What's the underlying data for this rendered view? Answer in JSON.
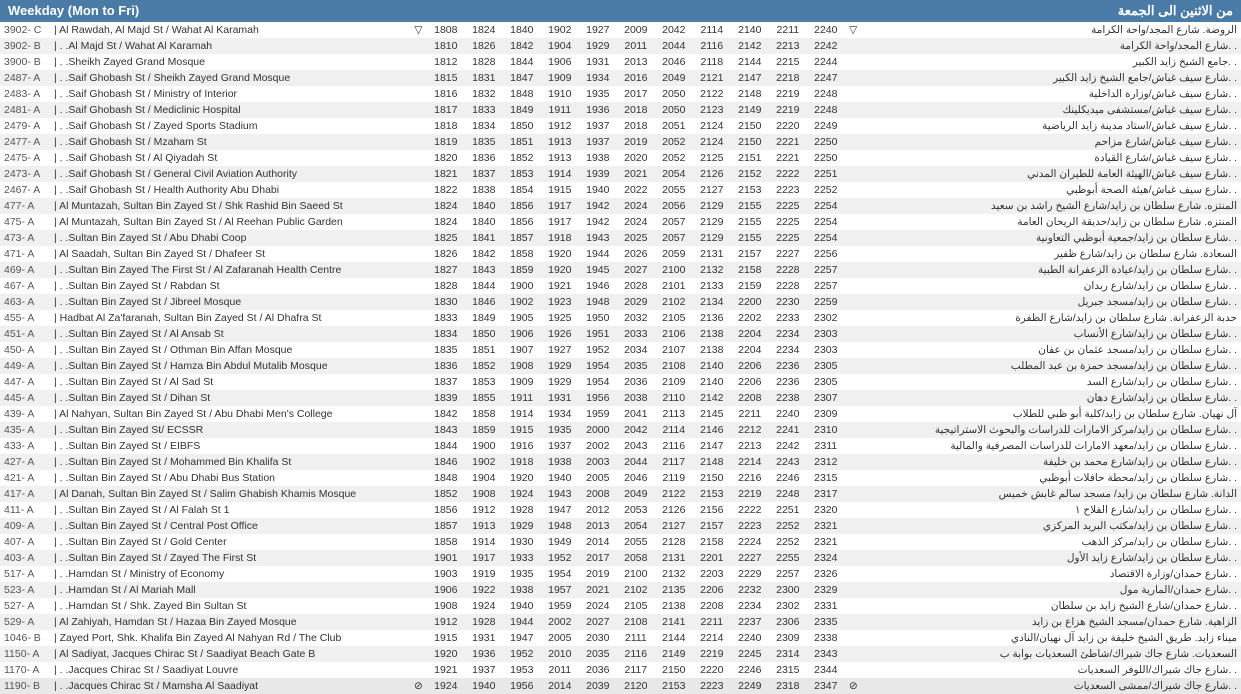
{
  "header_left": "Weekday (Mon to Fri)",
  "header_right": "من الاثنين الى الجمعة",
  "colors": {
    "header_bg": "#4a7ba6",
    "header_text": "#ffffff",
    "row_even": "#f0f0f0",
    "row_odd": "#ffffff",
    "text": "#333333"
  },
  "rows": [
    {
      "code": "3902- C",
      "stop": "| Al Rawdah, Al Majd St / Wahat Al Karamah",
      "m1": "▽",
      "times": [
        "1808",
        "1824",
        "1840",
        "1902",
        "1927",
        "2009",
        "2042",
        "2114",
        "2140",
        "2211",
        "2240"
      ],
      "m2": "▽",
      "ar": "الروضة. شارع المجد/واحة الكرامة"
    },
    {
      "code": "3902- B",
      "stop": "| . .Al Majd St / Wahat Al Karamah",
      "m1": "",
      "times": [
        "1810",
        "1826",
        "1842",
        "1904",
        "1929",
        "2011",
        "2044",
        "2116",
        "2142",
        "2213",
        "2242"
      ],
      "m2": "",
      "ar": ". .شارع المجد/واحة الكرامة"
    },
    {
      "code": "3900- B",
      "stop": "| . .Sheikh Zayed Grand Mosque",
      "m1": "",
      "times": [
        "1812",
        "1828",
        "1844",
        "1906",
        "1931",
        "2013",
        "2046",
        "2118",
        "2144",
        "2215",
        "2244"
      ],
      "m2": "",
      "ar": ". .جامع الشيخ زايد الكبير"
    },
    {
      "code": "2487- A",
      "stop": "| . .Saif Ghobash St / Sheikh Zayed Grand Mosque",
      "m1": "",
      "times": [
        "1815",
        "1831",
        "1847",
        "1909",
        "1934",
        "2016",
        "2049",
        "2121",
        "2147",
        "2218",
        "2247"
      ],
      "m2": "",
      "ar": ". .شارع سيف غباش/جامع الشيخ زايد الكبير"
    },
    {
      "code": "2483- A",
      "stop": "| . .Saif Ghobash St / Ministry of Interior",
      "m1": "",
      "times": [
        "1816",
        "1832",
        "1848",
        "1910",
        "1935",
        "2017",
        "2050",
        "2122",
        "2148",
        "2219",
        "2248"
      ],
      "m2": "",
      "ar": ". .شارع سيف غباش/وزارة الداخلية"
    },
    {
      "code": "2481- A",
      "stop": "| . .Saif Ghobash St / Mediclinic Hospital",
      "m1": "",
      "times": [
        "1817",
        "1833",
        "1849",
        "1911",
        "1936",
        "2018",
        "2050",
        "2123",
        "2149",
        "2219",
        "2248"
      ],
      "m2": "",
      "ar": ". .شارع سيف غباش/مستشفى ميديكلينك"
    },
    {
      "code": "2479- A",
      "stop": "| . .Saif Ghobash St / Zayed Sports Stadium",
      "m1": "",
      "times": [
        "1818",
        "1834",
        "1850",
        "1912",
        "1937",
        "2018",
        "2051",
        "2124",
        "2150",
        "2220",
        "2249"
      ],
      "m2": "",
      "ar": ". .شارع سيف غباش/استاد مدينة زايد الرياضية"
    },
    {
      "code": "2477- A",
      "stop": "| . .Saif Ghobash St / Mzaham St",
      "m1": "",
      "times": [
        "1819",
        "1835",
        "1851",
        "1913",
        "1937",
        "2019",
        "2052",
        "2124",
        "2150",
        "2221",
        "2250"
      ],
      "m2": "",
      "ar": ". .شارع سيف غباش/شارع مزاحم"
    },
    {
      "code": "2475- A",
      "stop": "| . .Saif Ghobash St / Al Qiyadah St",
      "m1": "",
      "times": [
        "1820",
        "1836",
        "1852",
        "1913",
        "1938",
        "2020",
        "2052",
        "2125",
        "2151",
        "2221",
        "2250"
      ],
      "m2": "",
      "ar": ". .شارع سيف غباش/شارع القيادة"
    },
    {
      "code": "2473- A",
      "stop": "| . .Saif Ghobash St / General Civil Aviation Authority",
      "m1": "",
      "times": [
        "1821",
        "1837",
        "1853",
        "1914",
        "1939",
        "2021",
        "2054",
        "2126",
        "2152",
        "2222",
        "2251"
      ],
      "m2": "",
      "ar": ". .شارع سيف غباش/الهيئة العامة للطيران المدني"
    },
    {
      "code": "2467- A",
      "stop": "| . .Saif Ghobash St / Health Authority Abu Dhabi",
      "m1": "",
      "times": [
        "1822",
        "1838",
        "1854",
        "1915",
        "1940",
        "2022",
        "2055",
        "2127",
        "2153",
        "2223",
        "2252"
      ],
      "m2": "",
      "ar": ". .شارع سيف غباش/هيئة الصحة أبوظبي"
    },
    {
      "code": "477- A",
      "stop": "| Al Muntazah, Sultan Bin Zayed St / Shk Rashid Bin Saeed St",
      "m1": "",
      "times": [
        "1824",
        "1840",
        "1856",
        "1917",
        "1942",
        "2024",
        "2056",
        "2129",
        "2155",
        "2225",
        "2254"
      ],
      "m2": "",
      "ar": "المنتزه. شارع سلطان بن زايد/شارع الشيخ راشد بن سعيد"
    },
    {
      "code": "475- A",
      "stop": "| Al Muntazah, Sultan Bin Zayed St / Al Reehan Public Garden",
      "m1": "",
      "times": [
        "1824",
        "1840",
        "1856",
        "1917",
        "1942",
        "2024",
        "2057",
        "2129",
        "2155",
        "2225",
        "2254"
      ],
      "m2": "",
      "ar": "المنتزه. شارع سلطان بن زايد/حديقة الريحان العامة"
    },
    {
      "code": "473- A",
      "stop": "| . .Sultan Bin Zayed St / Abu Dhabi Coop",
      "m1": "",
      "times": [
        "1825",
        "1841",
        "1857",
        "1918",
        "1943",
        "2025",
        "2057",
        "2129",
        "2155",
        "2225",
        "2254"
      ],
      "m2": "",
      "ar": ". .شارع سلطان بن زايد/جمعية أبوظبي التعاونية"
    },
    {
      "code": "471- A",
      "stop": "| Al Saadah, Sultan Bin Zayed St / Dhafeer St",
      "m1": "",
      "times": [
        "1826",
        "1842",
        "1858",
        "1920",
        "1944",
        "2026",
        "2059",
        "2131",
        "2157",
        "2227",
        "2256"
      ],
      "m2": "",
      "ar": "السعادة. شارع سلطان بن زايد/شارع ظفير"
    },
    {
      "code": "469- A",
      "stop": "| . .Sultan Bin Zayed The First St / Al Zafaranah Health Centre",
      "m1": "",
      "times": [
        "1827",
        "1843",
        "1859",
        "1920",
        "1945",
        "2027",
        "2100",
        "2132",
        "2158",
        "2228",
        "2257"
      ],
      "m2": "",
      "ar": ". .شارع سلطان بن زايد/عيادة الزعفرانة الطبية"
    },
    {
      "code": "467- A",
      "stop": "| . .Sultan Bin Zayed St / Rabdan St",
      "m1": "",
      "times": [
        "1828",
        "1844",
        "1900",
        "1921",
        "1946",
        "2028",
        "2101",
        "2133",
        "2159",
        "2228",
        "2257"
      ],
      "m2": "",
      "ar": ". .شارع سلطان بن زايد/شارع ربدان"
    },
    {
      "code": "463- A",
      "stop": "| . .Sultan Bin Zayed St / Jibreel Mosque",
      "m1": "",
      "times": [
        "1830",
        "1846",
        "1902",
        "1923",
        "1948",
        "2029",
        "2102",
        "2134",
        "2200",
        "2230",
        "2259"
      ],
      "m2": "",
      "ar": ". .شارع سلطان بن زايد/مسجد جبريل"
    },
    {
      "code": "455- A",
      "stop": "| Hadbat Al Za'faranah, Sultan Bin Zayed St / Al Dhafra St",
      "m1": "",
      "times": [
        "1833",
        "1849",
        "1905",
        "1925",
        "1950",
        "2032",
        "2105",
        "2136",
        "2202",
        "2233",
        "2302"
      ],
      "m2": "",
      "ar": "حدبة الزعفرانة. شارع سلطان بن زايد/شارع الظفرة"
    },
    {
      "code": "451- A",
      "stop": "| . .Sultan Bin Zayed St / Al Ansab St",
      "m1": "",
      "times": [
        "1834",
        "1850",
        "1906",
        "1926",
        "1951",
        "2033",
        "2106",
        "2138",
        "2204",
        "2234",
        "2303"
      ],
      "m2": "",
      "ar": ". .شارع سلطان بن زايد/شارع الأنساب"
    },
    {
      "code": "450- A",
      "stop": "| . .Sultan Bin Zayed St / Othman Bin Affan Mosque",
      "m1": "",
      "times": [
        "1835",
        "1851",
        "1907",
        "1927",
        "1952",
        "2034",
        "2107",
        "2138",
        "2204",
        "2234",
        "2303"
      ],
      "m2": "",
      "ar": ". .شارع سلطان بن زايد/مسجد عثمان بن عفان"
    },
    {
      "code": "449- A",
      "stop": "| . .Sultan Bin Zayed St / Hamza Bin Abdul Mutalib Mosque",
      "m1": "",
      "times": [
        "1836",
        "1852",
        "1908",
        "1929",
        "1954",
        "2035",
        "2108",
        "2140",
        "2206",
        "2236",
        "2305"
      ],
      "m2": "",
      "ar": ". .شارع سلطان بن زايد/مسجد حمزة بن عبد المطلب"
    },
    {
      "code": "447- A",
      "stop": "| . .Sultan Bin Zayed St / Al Sad St",
      "m1": "",
      "times": [
        "1837",
        "1853",
        "1909",
        "1929",
        "1954",
        "2036",
        "2109",
        "2140",
        "2206",
        "2236",
        "2305"
      ],
      "m2": "",
      "ar": ". .شارع سلطان بن زايد/شارع السد"
    },
    {
      "code": "445- A",
      "stop": "| . .Sultan Bin Zayed St / Dihan St",
      "m1": "",
      "times": [
        "1839",
        "1855",
        "1911",
        "1931",
        "1956",
        "2038",
        "2110",
        "2142",
        "2208",
        "2238",
        "2307"
      ],
      "m2": "",
      "ar": ". .شارع سلطان بن زايد/شارع دهان"
    },
    {
      "code": "439- A",
      "stop": "| Al Nahyan, Sultan Bin Zayed St / Abu Dhabi Men's College",
      "m1": "",
      "times": [
        "1842",
        "1858",
        "1914",
        "1934",
        "1959",
        "2041",
        "2113",
        "2145",
        "2211",
        "2240",
        "2309"
      ],
      "m2": "",
      "ar": "آل نهيان. شارع سلطان بن زايد/كلية أبو ظبي للطلاب"
    },
    {
      "code": "435- A",
      "stop": "| . .Sultan Bin Zayed St/ ECSSR",
      "m1": "",
      "times": [
        "1843",
        "1859",
        "1915",
        "1935",
        "2000",
        "2042",
        "2114",
        "2146",
        "2212",
        "2241",
        "2310"
      ],
      "m2": "",
      "ar": ". .شارع سلطان بن زايد/مركز الامارات للدراسات والبحوث الاستراتيجية"
    },
    {
      "code": "433- A",
      "stop": "| . .Sultan Bin Zayed St / EIBFS",
      "m1": "",
      "times": [
        "1844",
        "1900",
        "1916",
        "1937",
        "2002",
        "2043",
        "2116",
        "2147",
        "2213",
        "2242",
        "2311"
      ],
      "m2": "",
      "ar": ". .شارع سلطان بن زايد/معهد الامارات للدراسات المصرفية والمالية"
    },
    {
      "code": "427- A",
      "stop": "| . .Sultan Bin Zayed St / Mohammed Bin Khalifa St",
      "m1": "",
      "times": [
        "1846",
        "1902",
        "1918",
        "1938",
        "2003",
        "2044",
        "2117",
        "2148",
        "2214",
        "2243",
        "2312"
      ],
      "m2": "",
      "ar": ". .شارع سلطان بن زايد/شارع محمد بن خليفة"
    },
    {
      "code": "421- A",
      "stop": "| . .Sultan Bin Zayed St / Abu Dhabi Bus Station",
      "m1": "",
      "times": [
        "1848",
        "1904",
        "1920",
        "1940",
        "2005",
        "2046",
        "2119",
        "2150",
        "2216",
        "2246",
        "2315"
      ],
      "m2": "",
      "ar": ". .شارع سلطان بن زايد/محطة حافلات أبوظبي"
    },
    {
      "code": "417- A",
      "stop": "| Al Danah, Sultan Bin Zayed St / Salim Ghabish Khamis Mosque",
      "m1": "",
      "times": [
        "1852",
        "1908",
        "1924",
        "1943",
        "2008",
        "2049",
        "2122",
        "2153",
        "2219",
        "2248",
        "2317"
      ],
      "m2": "",
      "ar": "الدانة. شارع سلطان بن زايد/ مسجد سالم غابش خميس"
    },
    {
      "code": "411- A",
      "stop": "| . .Sultan Bin Zayed St / Al Falah St 1",
      "m1": "",
      "times": [
        "1856",
        "1912",
        "1928",
        "1947",
        "2012",
        "2053",
        "2126",
        "2156",
        "2222",
        "2251",
        "2320"
      ],
      "m2": "",
      "ar": ". .شارع سلطان بن زايد/شارع الفلاح ١"
    },
    {
      "code": "409- A",
      "stop": "| . .Sultan Bin Zayed St / Central Post Office",
      "m1": "",
      "times": [
        "1857",
        "1913",
        "1929",
        "1948",
        "2013",
        "2054",
        "2127",
        "2157",
        "2223",
        "2252",
        "2321"
      ],
      "m2": "",
      "ar": ". .شارع سلطان بن زايد/مكتب البريد المركزي"
    },
    {
      "code": "407- A",
      "stop": "| . .Sultan Bin Zayed St / Gold Center",
      "m1": "",
      "times": [
        "1858",
        "1914",
        "1930",
        "1949",
        "2014",
        "2055",
        "2128",
        "2158",
        "2224",
        "2252",
        "2321"
      ],
      "m2": "",
      "ar": ". .شارع سلطان بن زايد/مركز الذهب"
    },
    {
      "code": "403- A",
      "stop": "| . .Sultan Bin Zayed St / Zayed The First St",
      "m1": "",
      "times": [
        "1901",
        "1917",
        "1933",
        "1952",
        "2017",
        "2058",
        "2131",
        "2201",
        "2227",
        "2255",
        "2324"
      ],
      "m2": "",
      "ar": ". .شارع سلطان بن زايد/شارع زايد الأول"
    },
    {
      "code": "517- A",
      "stop": "| . .Hamdan St / Ministry of Economy",
      "m1": "",
      "times": [
        "1903",
        "1919",
        "1935",
        "1954",
        "2019",
        "2100",
        "2132",
        "2203",
        "2229",
        "2257",
        "2326"
      ],
      "m2": "",
      "ar": ". .شارع حمدان/وزارة الاقتصاد"
    },
    {
      "code": "523- A",
      "stop": "| . .Hamdan St / Al Mariah Mall",
      "m1": "",
      "times": [
        "1906",
        "1922",
        "1938",
        "1957",
        "2021",
        "2102",
        "2135",
        "2206",
        "2232",
        "2300",
        "2329"
      ],
      "m2": "",
      "ar": ". .شارع حمدان/المارية مول"
    },
    {
      "code": "527- A",
      "stop": "| . .Hamdan St / Shk. Zayed Bin Sultan St",
      "m1": "",
      "times": [
        "1908",
        "1924",
        "1940",
        "1959",
        "2024",
        "2105",
        "2138",
        "2208",
        "2234",
        "2302",
        "2331"
      ],
      "m2": "",
      "ar": ". .شارع حمدان/شارع الشيخ زايد بن سلطان"
    },
    {
      "code": "529- A",
      "stop": "| Al Zahiyah, Hamdan St / Hazaa Bin Zayed Mosque",
      "m1": "",
      "times": [
        "1912",
        "1928",
        "1944",
        "2002",
        "2027",
        "2108",
        "2141",
        "2211",
        "2237",
        "2306",
        "2335"
      ],
      "m2": "",
      "ar": "الزاهية. شارع حمدان/مسجد الشيخ هزاع بن زايد"
    },
    {
      "code": "1046- B",
      "stop": "| Zayed Port, Shk. Khalifa Bin Zayed Al Nahyan Rd / The Club",
      "m1": "",
      "times": [
        "1915",
        "1931",
        "1947",
        "2005",
        "2030",
        "2111",
        "2144",
        "2214",
        "2240",
        "2309",
        "2338"
      ],
      "m2": "",
      "ar": "ميناء زايد. طريق الشيخ خليفة بن زايد آل نهيان/النادي"
    },
    {
      "code": "1150- A",
      "stop": "| Al Sadiyat, Jacques Chirac St / Saadiyat Beach Gate B",
      "m1": "",
      "times": [
        "1920",
        "1936",
        "1952",
        "2010",
        "2035",
        "2116",
        "2149",
        "2219",
        "2245",
        "2314",
        "2343"
      ],
      "m2": "",
      "ar": "السعديات. شارع جاك شيراك/شاطئ السعديات بوابة ب"
    },
    {
      "code": "1170- A",
      "stop": "| . .Jacques Chirac St / Saadiyat Louvre",
      "m1": "",
      "times": [
        "1921",
        "1937",
        "1953",
        "2011",
        "2036",
        "2117",
        "2150",
        "2220",
        "2246",
        "2315",
        "2344"
      ],
      "m2": "",
      "ar": ". .شارع جاك شيراك/اللوفر السعديات"
    },
    {
      "code": "1190- B",
      "stop": "| . .Jacques Chirac St / Mamsha Al Saadiyat",
      "m1": "⊘",
      "times": [
        "1924",
        "1940",
        "1956",
        "2014",
        "2039",
        "2120",
        "2153",
        "2223",
        "2249",
        "2318",
        "2347"
      ],
      "m2": "⊘",
      "ar": ". .شارع جاك شيراك/ممشى السعديات",
      "hl": true
    }
  ]
}
